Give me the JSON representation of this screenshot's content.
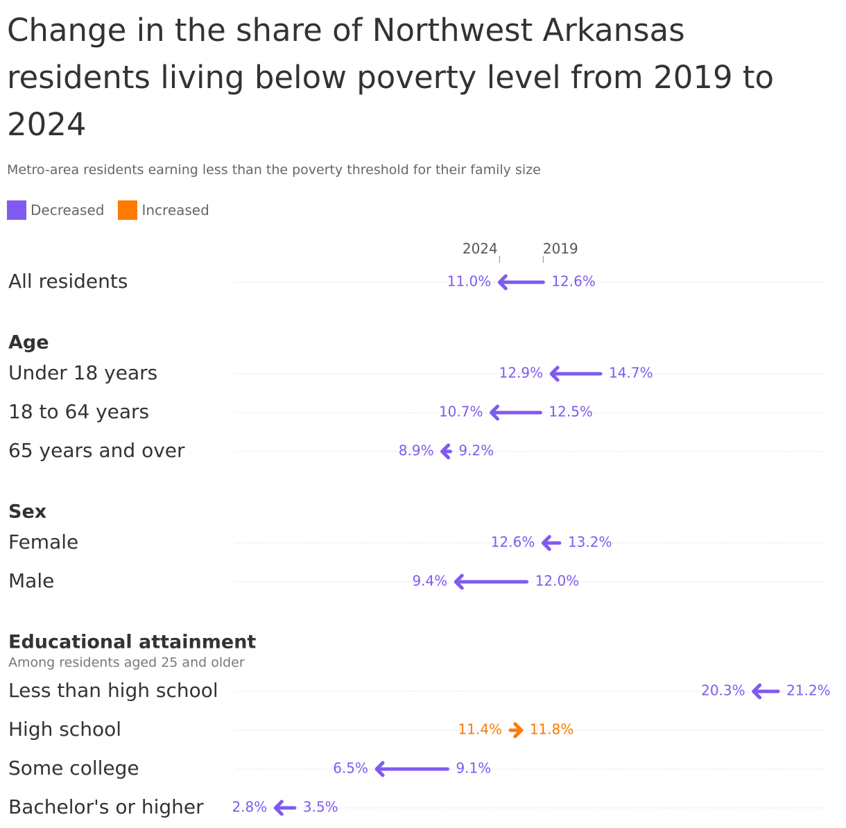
{
  "chart_data": {
    "type": "arrow",
    "title": "Change in the share of Northwest Arkansas residents living below poverty level from 2019 to 2024",
    "subtitle": "Metro-area residents earning less than the poverty threshold for their family size",
    "legend": [
      {
        "name": "Decreased",
        "color": "#7f5af0"
      },
      {
        "name": "Increased",
        "color": "#ff7a00"
      }
    ],
    "column_labels": [
      "2024",
      "2019"
    ],
    "xlim": [
      0,
      23
    ],
    "groups": [
      {
        "categories": [
          "All residents"
        ],
        "to": [
          11.0
        ],
        "to_labels": [
          "11.0%"
        ],
        "from": [
          12.6
        ],
        "from_labels": [
          "12.6%"
        ]
      },
      {
        "name": "Age",
        "categories": [
          "Under 18 years",
          "18 to 64 years",
          "65 years and over"
        ],
        "to": [
          12.9,
          10.7,
          8.9
        ],
        "to_labels": [
          "12.9%",
          "10.7%",
          "8.9%"
        ],
        "from": [
          14.7,
          12.5,
          9.2
        ],
        "from_labels": [
          "14.7%",
          "12.5%",
          "9.2%"
        ]
      },
      {
        "name": "Sex",
        "categories": [
          "Female",
          "Male"
        ],
        "to": [
          12.6,
          9.4
        ],
        "to_labels": [
          "12.6%",
          "9.4%"
        ],
        "from": [
          13.2,
          12.0
        ],
        "from_labels": [
          "13.2%",
          "12.0%"
        ]
      },
      {
        "name": "Educational attainment",
        "note": "Among residents aged 25 and older",
        "categories": [
          "Less than high school",
          "High school",
          "Some college",
          "Bachelor's or higher"
        ],
        "to": [
          20.3,
          11.8,
          6.5,
          2.8
        ],
        "to_labels": [
          "20.3%",
          "11.8%",
          "6.5%",
          "2.8%"
        ],
        "from": [
          21.2,
          11.4,
          9.1,
          3.5
        ],
        "from_labels": [
          "21.2%",
          "11.4%",
          "9.1%",
          "3.5%"
        ]
      }
    ]
  }
}
